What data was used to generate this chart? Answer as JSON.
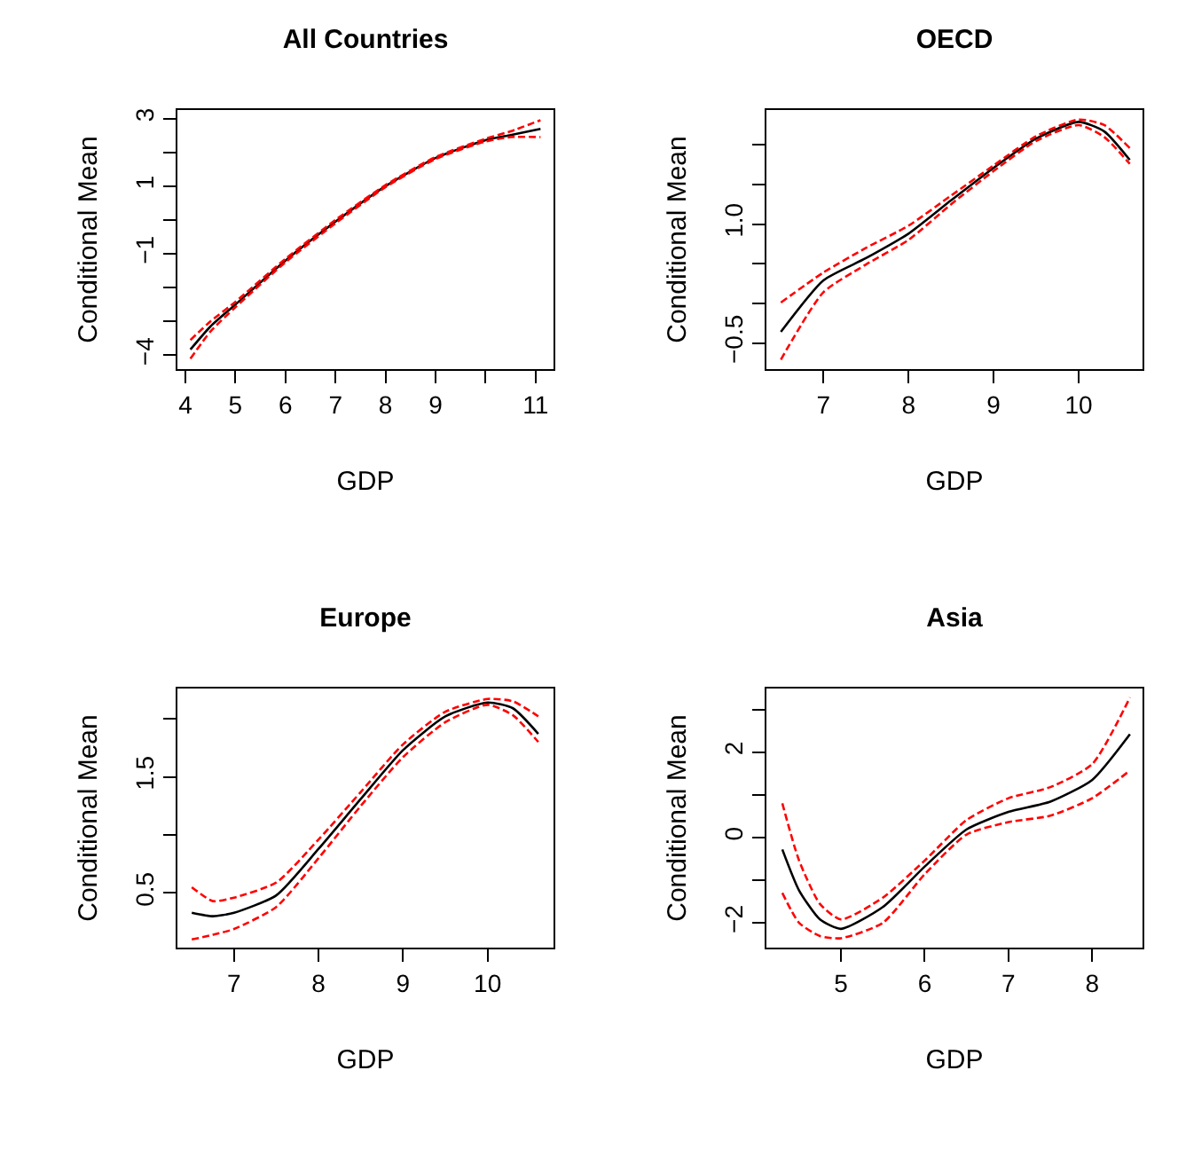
{
  "chart_data": [
    {
      "type": "line",
      "title": "All Countries",
      "xlabel": "GDP",
      "ylabel": "Conditional Mean",
      "xlim": [
        3.84,
        11.36
      ],
      "ylim": [
        -4.41,
        3.25
      ],
      "xticks": [
        4,
        5,
        6,
        7,
        8,
        9,
        {
          "value": 10,
          "label": null
        },
        11
      ],
      "yticks": [
        -4,
        {
          "value": -3,
          "label": null
        },
        {
          "value": -2,
          "label": null
        },
        -1,
        {
          "value": 0,
          "label": null
        },
        1,
        {
          "value": 2,
          "label": null
        },
        3
      ],
      "x": [
        4.1,
        4.5,
        5,
        6,
        7,
        8,
        9,
        10,
        10.5,
        11.1
      ],
      "series": [
        {
          "color": "#000000",
          "line_style": "solid",
          "values": [
            -3.83,
            -3.15,
            -2.5,
            -1.2,
            -0.05,
            1.0,
            1.83,
            2.36,
            2.51,
            2.69
          ]
        },
        {
          "color": "#ff0000",
          "line_style": "dashed",
          "values": [
            -3.55,
            -3.0,
            -2.42,
            -1.15,
            0.0,
            1.03,
            1.86,
            2.4,
            2.62,
            2.95
          ]
        },
        {
          "color": "#ff0000",
          "line_style": "dashed",
          "values": [
            -4.1,
            -3.3,
            -2.58,
            -1.25,
            -0.1,
            0.97,
            1.8,
            2.32,
            2.45,
            2.45
          ]
        }
      ]
    },
    {
      "type": "line",
      "title": "OECD",
      "xlabel": "GDP",
      "ylabel": "Conditional Mean",
      "xlim": [
        6.33,
        10.75
      ],
      "ylim": [
        -0.83,
        2.44
      ],
      "xticks": [
        7,
        8,
        9,
        10
      ],
      "yticks": [
        -0.5,
        {
          "value": 0,
          "label": null
        },
        {
          "value": 0.5,
          "label": null
        },
        {
          "value": 1,
          "label": "1.0"
        },
        {
          "value": 1.5,
          "label": null
        },
        {
          "value": 2,
          "label": null
        }
      ],
      "x": [
        6.5,
        7,
        7.5,
        8,
        8.5,
        9,
        9.5,
        10,
        10.3,
        10.6
      ],
      "series": [
        {
          "color": "#000000",
          "line_style": "solid",
          "values": [
            -0.36,
            0.29,
            0.57,
            0.88,
            1.3,
            1.71,
            2.08,
            2.29,
            2.17,
            1.81
          ]
        },
        {
          "color": "#ff0000",
          "line_style": "dashed",
          "values": [
            0.01,
            0.39,
            0.7,
            0.98,
            1.36,
            1.74,
            2.11,
            2.32,
            2.25,
            1.96
          ]
        },
        {
          "color": "#ff0000",
          "line_style": "dashed",
          "values": [
            -0.71,
            0.14,
            0.49,
            0.8,
            1.25,
            1.67,
            2.05,
            2.25,
            2.1,
            1.76
          ]
        }
      ]
    },
    {
      "type": "line",
      "title": "Europe",
      "xlabel": "GDP",
      "ylabel": "Conditional Mean",
      "xlim": [
        6.33,
        10.78
      ],
      "ylim": [
        0.03,
        2.26
      ],
      "xticks": [
        7,
        8,
        9,
        10
      ],
      "yticks": [
        0.5,
        {
          "value": 1,
          "label": null
        },
        1.5,
        {
          "value": 2,
          "label": null
        }
      ],
      "x": [
        6.5,
        6.75,
        7,
        7.5,
        8,
        8.5,
        9,
        9.5,
        10,
        10.3,
        10.6
      ],
      "series": [
        {
          "color": "#000000",
          "line_style": "solid",
          "values": [
            0.33,
            0.3,
            0.33,
            0.48,
            0.88,
            1.31,
            1.73,
            2.02,
            2.14,
            2.09,
            1.87
          ]
        },
        {
          "color": "#ff0000",
          "line_style": "dashed",
          "values": [
            0.55,
            0.43,
            0.46,
            0.59,
            0.96,
            1.37,
            1.78,
            2.06,
            2.17,
            2.15,
            2.02
          ]
        },
        {
          "color": "#ff0000",
          "line_style": "dashed",
          "values": [
            0.1,
            0.14,
            0.19,
            0.38,
            0.8,
            1.25,
            1.67,
            1.97,
            2.12,
            2.03,
            1.8
          ]
        }
      ]
    },
    {
      "type": "line",
      "title": "Asia",
      "xlabel": "GDP",
      "ylabel": "Conditional Mean",
      "xlim": [
        4.11,
        8.6
      ],
      "ylim": [
        -2.58,
        3.49
      ],
      "xticks": [
        5,
        6,
        7,
        8
      ],
      "yticks": [
        -2,
        {
          "value": -1,
          "label": null
        },
        0,
        {
          "value": 1,
          "label": null
        },
        2,
        {
          "value": 3,
          "label": null
        }
      ],
      "x": [
        4.3,
        4.5,
        4.75,
        5,
        5.5,
        6,
        6.5,
        7,
        7.5,
        8,
        8.45
      ],
      "series": [
        {
          "color": "#000000",
          "line_style": "solid",
          "values": [
            -0.28,
            -1.24,
            -1.92,
            -2.14,
            -1.63,
            -0.68,
            0.19,
            0.6,
            0.84,
            1.35,
            2.42
          ]
        },
        {
          "color": "#ff0000",
          "line_style": "dashed",
          "values": [
            0.8,
            -0.54,
            -1.56,
            -1.92,
            -1.41,
            -0.54,
            0.41,
            0.92,
            1.18,
            1.72,
            3.28
          ]
        },
        {
          "color": "#ff0000",
          "line_style": "dashed",
          "values": [
            -1.3,
            -2.0,
            -2.31,
            -2.36,
            -2.0,
            -0.86,
            0.07,
            0.36,
            0.51,
            0.92,
            1.57
          ]
        }
      ]
    }
  ]
}
